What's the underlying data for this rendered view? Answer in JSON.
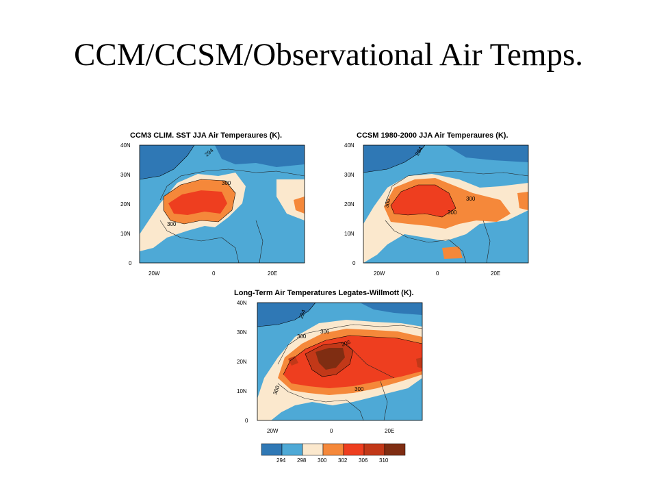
{
  "title": "CCM/CCSM/Observational Air Temps.",
  "colors": {
    "c294": "#2f78b5",
    "c298": "#4ea9d6",
    "c300": "#fbe8cd",
    "c302": "#f5883a",
    "c306": "#ee3e1f",
    "c310": "#c23818",
    "c310plus": "#7f2d12"
  },
  "chart_data": [
    {
      "type": "heatmap",
      "title": "CCM3 CLIM. SST JJA Air Temperaures (K).",
      "lat_ticks": [
        "40N",
        "30N",
        "20N",
        "10N",
        "0"
      ],
      "lon_ticks": [
        "20W",
        "0",
        "20E"
      ],
      "xlim_deg": [
        -25,
        30
      ],
      "ylim_deg": [
        0,
        40
      ],
      "contour_labels": [
        "294",
        "300",
        "300"
      ]
    },
    {
      "type": "heatmap",
      "title": "CCSM 1980-2000 JJA Air Temperaures (K).",
      "lat_ticks": [
        "40N",
        "30N",
        "20N",
        "10N",
        "0"
      ],
      "lon_ticks": [
        "20W",
        "0",
        "20E"
      ],
      "xlim_deg": [
        -25,
        30
      ],
      "ylim_deg": [
        0,
        40
      ],
      "contour_labels": [
        "294",
        "300",
        "300",
        "300"
      ]
    },
    {
      "type": "heatmap",
      "title": "Long-Term Air Temperatures Legates-Willmott (K).",
      "lat_ticks": [
        "40N",
        "30N",
        "20N",
        "10N",
        "0"
      ],
      "lon_ticks": [
        "20W",
        "0",
        "20E"
      ],
      "xlim_deg": [
        -25,
        30
      ],
      "ylim_deg": [
        0,
        40
      ],
      "contour_labels": [
        "294",
        "300",
        "306",
        "306",
        "300",
        "300"
      ]
    }
  ],
  "colorbar": {
    "labels": [
      "294",
      "298",
      "300",
      "302",
      "306",
      "310"
    ]
  }
}
